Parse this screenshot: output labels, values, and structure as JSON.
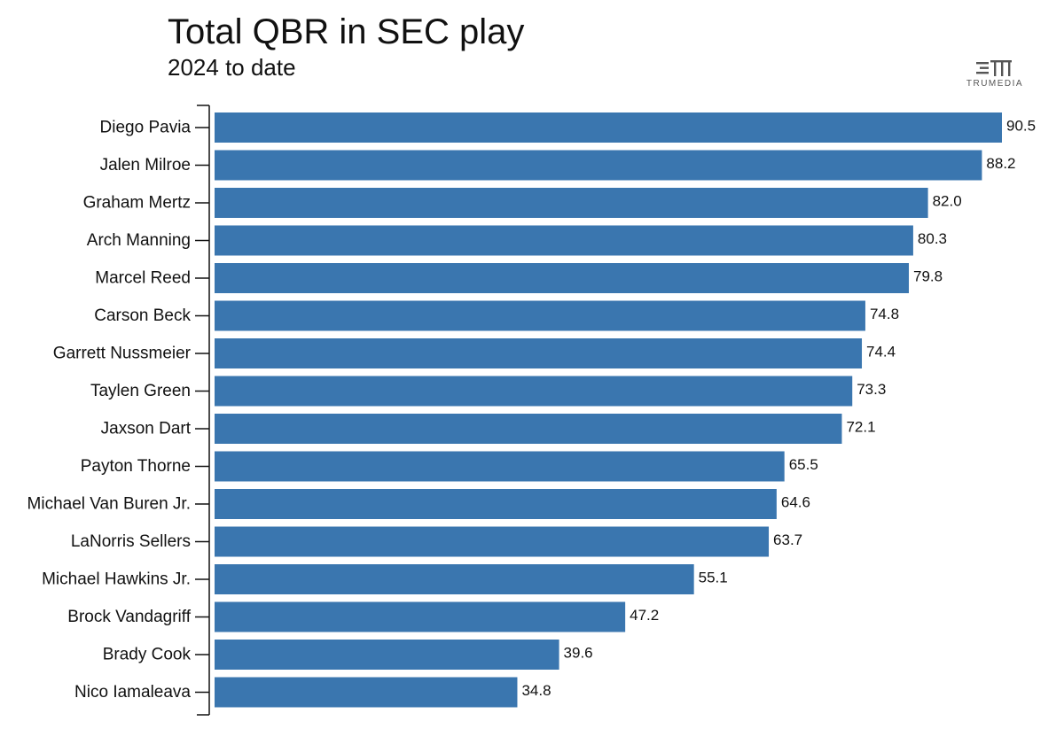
{
  "chart_data": {
    "type": "bar",
    "orientation": "horizontal",
    "title": "Total QBR in SEC play",
    "subtitle": "2024 to date",
    "xlabel": "",
    "ylabel": "",
    "xlim": [
      0,
      90.5
    ],
    "grid": false,
    "bar_color": "#3a76af",
    "categories": [
      "Diego Pavia",
      "Jalen Milroe",
      "Graham Mertz",
      "Arch Manning",
      "Marcel Reed",
      "Carson Beck",
      "Garrett Nussmeier",
      "Taylen Green",
      "Jaxson Dart",
      "Payton Thorne",
      "Michael Van Buren Jr.",
      "LaNorris Sellers",
      "Michael Hawkins Jr.",
      "Brock Vandagriff",
      "Brady Cook",
      "Nico Iamaleava"
    ],
    "values": [
      90.5,
      88.2,
      82.0,
      80.3,
      79.8,
      74.8,
      74.4,
      73.3,
      72.1,
      65.5,
      64.6,
      63.7,
      55.1,
      47.2,
      39.6,
      34.8
    ],
    "value_labels": [
      "90.5",
      "88.2",
      "82.0",
      "80.3",
      "79.8",
      "74.8",
      "74.4",
      "73.3",
      "72.1",
      "65.5",
      "64.6",
      "63.7",
      "55.1",
      "47.2",
      "39.6",
      "34.8"
    ]
  },
  "branding": {
    "logo_text": "TRUMEDIA",
    "logo_icon": "trumedia-logo-icon"
  }
}
